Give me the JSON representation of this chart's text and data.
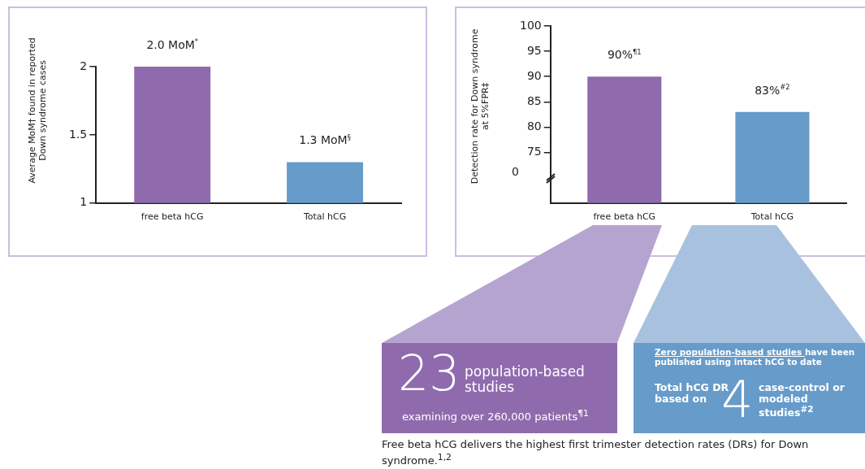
{
  "chart_data": [
    {
      "type": "bar",
      "ylabel": "Average MoM† found in reported Down syndrome cases",
      "categories": [
        "free beta hCG",
        "Total hCG"
      ],
      "values": [
        2.0,
        1.3
      ],
      "colors": [
        "#8f6bae",
        "#679bc9"
      ],
      "value_labels": [
        "2.0 MoM$^{*}$",
        "1.3 MoM$^{§}$"
      ],
      "ylim": [
        1,
        2
      ],
      "yticks": [
        1,
        1.5,
        2
      ]
    },
    {
      "type": "bar",
      "ylabel": "Detection rate for Down syndrome at 5%FPR‡",
      "categories": [
        "free beta hCG",
        "Total hCG"
      ],
      "values": [
        90,
        83
      ],
      "colors": [
        "#8f6bae",
        "#679bc9"
      ],
      "value_labels": [
        "90%$^{¶1}$",
        "83%$^{#2}$"
      ],
      "ylim": [
        65,
        100
      ],
      "yticks": [
        75,
        80,
        85,
        90,
        95,
        100
      ],
      "annotations": [
        "23",
        "population-based studies",
        "examining over 260,000 patients$^{¶1}$",
        "Zero population-based studies",
        "have been published using intact hCG to date",
        "Total hCG DR based on",
        "4",
        "case-control or modeled studies$^{#2}$",
        "Free beta hCG delivers the highest first trimester detection rates (DRs) for Down syndrome.$^{1,2}$",
        "0"
      ]
    }
  ]
}
